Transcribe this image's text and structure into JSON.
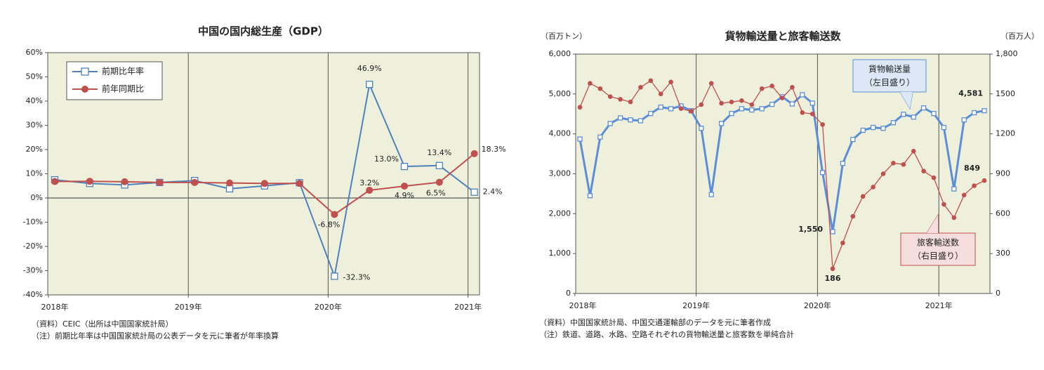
{
  "chart_data": [
    {
      "type": "line",
      "title": "中国の国内総生産（GDP）",
      "categories": [
        "2018年",
        null,
        null,
        null,
        "2019年",
        null,
        null,
        null,
        "2020年",
        null,
        null,
        null,
        "2021年"
      ],
      "series": [
        {
          "name": "前期比年率",
          "color": "#4f81bd",
          "marker": "square",
          "values": [
            7.5,
            6.0,
            5.4,
            6.4,
            7.2,
            3.8,
            5.0,
            6.3,
            -32.3,
            46.9,
            13.0,
            13.4,
            2.4
          ],
          "value_labels": [
            null,
            null,
            null,
            null,
            null,
            null,
            null,
            null,
            "-32.3%",
            "46.9%",
            "13.0%",
            "13.4%",
            "2.4%"
          ]
        },
        {
          "name": "前年同期比",
          "color": "#c0504d",
          "marker": "circle",
          "values": [
            6.8,
            6.9,
            6.7,
            6.4,
            6.4,
            6.2,
            6.0,
            6.0,
            -6.8,
            3.2,
            4.9,
            6.5,
            18.3
          ],
          "value_labels": [
            null,
            null,
            null,
            null,
            null,
            null,
            null,
            null,
            "-6.8%",
            "3.2%",
            "4.9%",
            "6.5%",
            "18.3%"
          ]
        }
      ],
      "ylim": [
        -40,
        60
      ],
      "yticks": [
        {
          "value": -40,
          "label": "-40%"
        },
        {
          "value": -30,
          "label": "-30%"
        },
        {
          "value": -20,
          "label": "-20%"
        },
        {
          "value": -10,
          "label": "-10%"
        },
        {
          "value": 0,
          "label": "0%"
        },
        {
          "value": 10,
          "label": "10%"
        },
        {
          "value": 20,
          "label": "20%"
        },
        {
          "value": 30,
          "label": "30%"
        },
        {
          "value": 40,
          "label": "40%"
        },
        {
          "value": 50,
          "label": "50%"
        },
        {
          "value": 60,
          "label": "60%"
        }
      ],
      "grid": false,
      "zero_line": true,
      "legend": "upper left",
      "notes": [
        "（資料）CEIC（出所は中国国家統計局）",
        "（注）前期比年率は中国国家統計局の公表データを元に筆者が年率換算"
      ]
    },
    {
      "type": "line",
      "title": "貨物輸送量と旅客輸送数",
      "y_label": "（百万トン）",
      "y2_label": "（百万人）",
      "categories": [
        "2018年",
        null,
        null,
        null,
        null,
        null,
        null,
        null,
        null,
        null,
        null,
        null,
        "2019年",
        null,
        null,
        null,
        null,
        null,
        null,
        null,
        null,
        null,
        null,
        null,
        "2020年",
        null,
        null,
        null,
        null,
        null,
        null,
        null,
        null,
        null,
        null,
        null,
        "2021年",
        null,
        null,
        null,
        null
      ],
      "series": [
        {
          "name": "貨物輸送量",
          "scale_label": "（左目盛り）",
          "color": "#5b8ed6",
          "marker": "square",
          "values": [
            3870,
            2450,
            3920,
            4260,
            4400,
            4350,
            4330,
            4510,
            4670,
            4630,
            4700,
            4580,
            4140,
            2480,
            4260,
            4510,
            4630,
            4600,
            4630,
            4740,
            4930,
            4750,
            4980,
            4770,
            3030,
            1550,
            3260,
            3860,
            4090,
            4160,
            4140,
            4280,
            4490,
            4420,
            4650,
            4510,
            4160,
            2620,
            4350,
            4530,
            4581
          ],
          "value_labels": [
            null,
            null,
            null,
            null,
            null,
            null,
            null,
            null,
            null,
            null,
            null,
            null,
            null,
            null,
            null,
            null,
            null,
            null,
            null,
            null,
            null,
            null,
            null,
            null,
            null,
            "1,550",
            null,
            null,
            null,
            null,
            null,
            null,
            null,
            null,
            null,
            null,
            null,
            null,
            null,
            null,
            "4,581"
          ]
        },
        {
          "name": "旅客輸送数",
          "scale_label": "（右目盛り）",
          "color": "#c0504d",
          "marker": "circle",
          "axis": "y2",
          "values": [
            1400,
            1580,
            1540,
            1480,
            1460,
            1440,
            1550,
            1600,
            1500,
            1590,
            1390,
            1370,
            1420,
            1580,
            1430,
            1440,
            1450,
            1420,
            1540,
            1560,
            1470,
            1550,
            1360,
            1350,
            1270,
            186,
            380,
            580,
            730,
            800,
            900,
            980,
            970,
            1070,
            920,
            870,
            670,
            570,
            740,
            810,
            849
          ],
          "value_labels": [
            null,
            null,
            null,
            null,
            null,
            null,
            null,
            null,
            null,
            null,
            null,
            null,
            null,
            null,
            null,
            null,
            null,
            null,
            null,
            null,
            null,
            null,
            null,
            null,
            null,
            "186",
            null,
            null,
            null,
            null,
            null,
            null,
            null,
            null,
            null,
            null,
            null,
            null,
            null,
            null,
            "849"
          ]
        }
      ],
      "ylim": [
        0,
        6000
      ],
      "yticks": [
        0,
        {
          "value": 1000,
          "label": "1,000"
        },
        {
          "value": 2000,
          "label": "2,000"
        },
        {
          "value": 3000,
          "label": "3,000"
        },
        {
          "value": 4000,
          "label": "4,000"
        },
        {
          "value": 5000,
          "label": "5,000"
        },
        {
          "value": 6000,
          "label": "6,000"
        }
      ],
      "y2lim": [
        0,
        1800
      ],
      "y2ticks": [
        0,
        300,
        600,
        900,
        1200,
        1500,
        {
          "value": 1800,
          "label": "1,800"
        }
      ],
      "grid": false,
      "legend": "callout",
      "notes": [
        "（資料）中国国家統計局、中国交通運輸部のデータを元に筆者作成",
        "（注）鉄道、道路、水路、空路それぞれの貨物輸送量と旅客数を単純合計"
      ]
    }
  ]
}
